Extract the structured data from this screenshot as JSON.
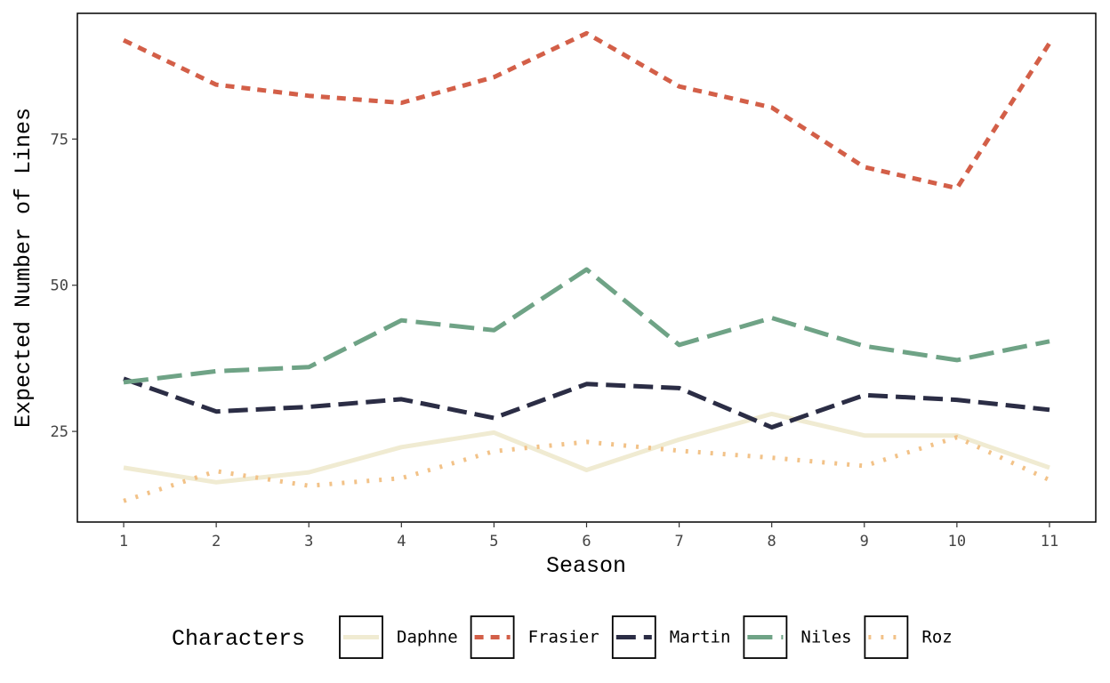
{
  "chart_data": {
    "type": "line",
    "xlabel": "Season",
    "ylabel": "Expected Number of Lines",
    "x": [
      1,
      2,
      3,
      4,
      5,
      6,
      7,
      8,
      9,
      10,
      11
    ],
    "xlim": [
      0.5,
      11.5
    ],
    "ylim": [
      9.5,
      96.5
    ],
    "yticks": [
      25,
      50,
      75
    ],
    "grid": false,
    "legend": {
      "title": "Characters",
      "position": "bottom"
    },
    "series": [
      {
        "name": "Daphne",
        "color": "#f0ebd2",
        "dash": "solid",
        "values": [
          18.8,
          16.3,
          18.0,
          22.3,
          24.8,
          18.4,
          23.6,
          28.0,
          24.3,
          24.3,
          18.8
        ]
      },
      {
        "name": "Frasier",
        "color": "#d35f48",
        "dash": "dashed",
        "values": [
          91.9,
          84.3,
          82.4,
          81.2,
          85.6,
          93.1,
          84.0,
          80.4,
          70.2,
          66.6,
          91.4
        ]
      },
      {
        "name": "Martin",
        "color": "#2b2d45",
        "dash": "longdash",
        "values": [
          34.0,
          28.4,
          29.2,
          30.5,
          27.3,
          33.1,
          32.4,
          25.7,
          31.2,
          30.4,
          28.7
        ]
      },
      {
        "name": "Niles",
        "color": "#6fa386",
        "dash": "twodash",
        "values": [
          33.4,
          35.3,
          36.0,
          44.0,
          42.3,
          52.7,
          39.8,
          44.4,
          39.6,
          37.2,
          40.4
        ]
      },
      {
        "name": "Roz",
        "color": "#f2c288",
        "dash": "dotted",
        "values": [
          13.1,
          18.2,
          15.7,
          17.0,
          21.6,
          23.2,
          21.7,
          20.5,
          19.1,
          24.0,
          16.7
        ]
      }
    ]
  }
}
